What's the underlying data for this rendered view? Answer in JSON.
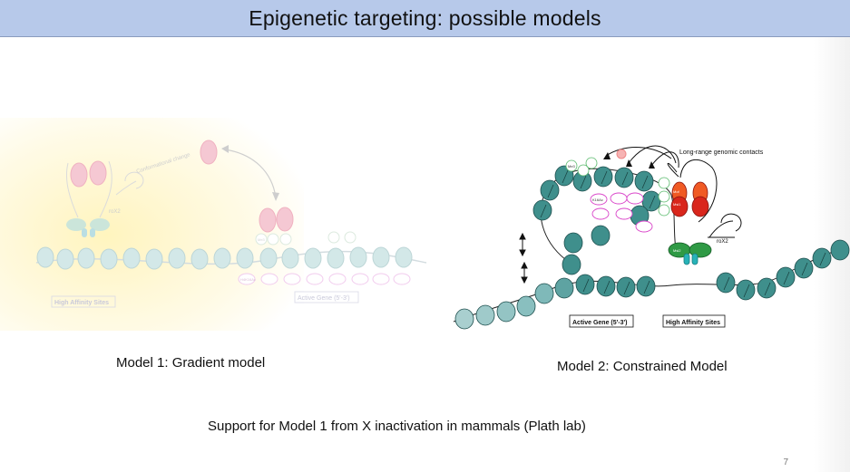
{
  "slide": {
    "title": "Epigenetic targeting: possible models",
    "page_number": "7"
  },
  "model1": {
    "caption": "Model 1: Gradient model",
    "labels": {
      "conformational_change": "Conformational change",
      "rox2": "roX2",
      "high_affinity_sites": "High Affinity Sites",
      "active_gene": "Active Gene (5'-3')",
      "me3": "Me3",
      "h4k16ac": "H4K16Ac"
    }
  },
  "model2": {
    "caption": "Model 2: Constrained Model",
    "labels": {
      "long_range": "Long-range genomic contacts",
      "rox2": "roX2",
      "active_gene": "Active Gene (5'-3')",
      "high_affinity_sites": "High Affinity Sites",
      "me3": "Me3",
      "k16ac": "K16Ac",
      "msl1": "Msl1",
      "msl2": "Msl2",
      "mof": "Mof"
    }
  },
  "footer": {
    "support_text": "Support for Model 1 from X inactivation in mammals (Plath lab)"
  },
  "colors": {
    "title_bar": "#b7c9ea",
    "nucleosome": "#3f8f8c",
    "mof_red": "#d9261c",
    "msl_green": "#2f9a45",
    "pink_ring": "#d944c9",
    "faded_yellow": "#fff6c8"
  }
}
